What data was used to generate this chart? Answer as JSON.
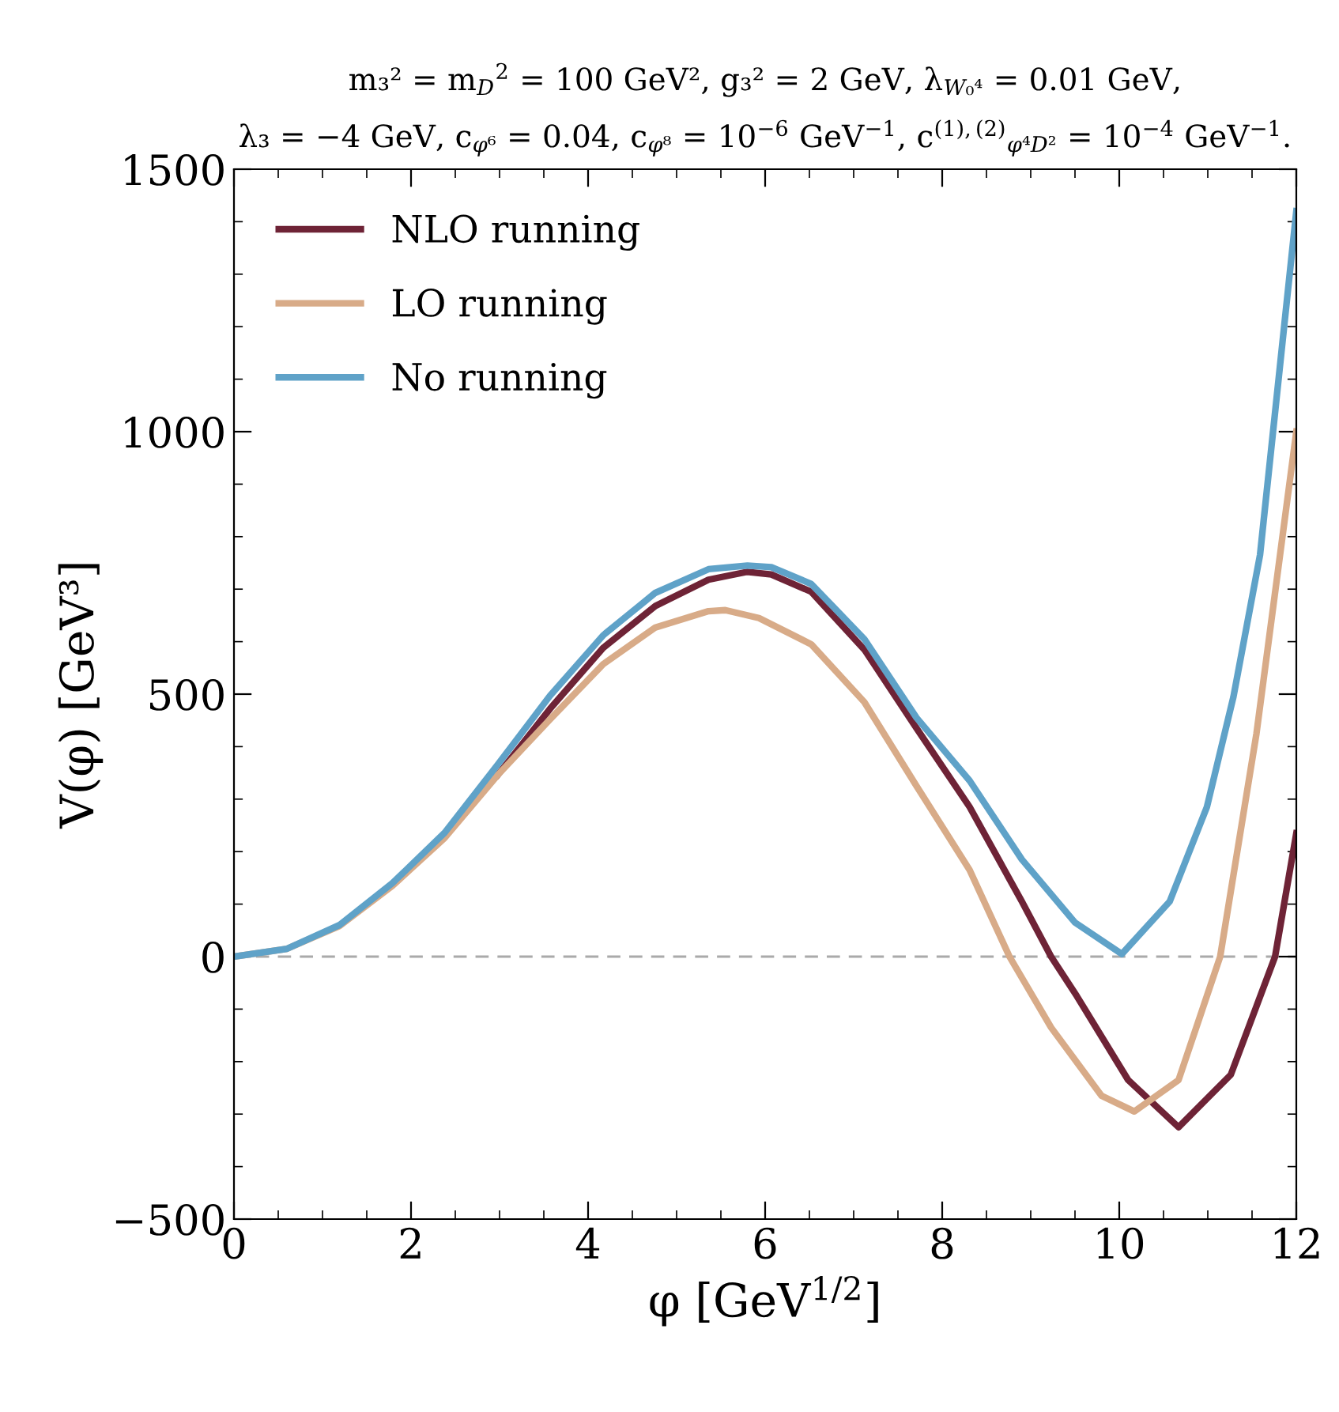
{
  "chart_data": {
    "type": "line",
    "title": "m₃² = m$_{D}$$^{2}$ = 100 GeV², g₃² = 2 GeV, λ$_{W₀⁴}$ = 0.01 GeV,\nλ₃ = −4 GeV, c$_{φ⁶}$ = 0.04, c$_{φ⁸}$ = 10$^{−6}$ GeV$^{−1}$, c$^{(1),(2)}$$_{φ⁴D²}$ = 10$^{−4}$ GeV$^{−1}$.",
    "xlabel": "φ [GeV$^{1/2}$]",
    "ylabel": "V(φ) [GeV³]",
    "series": [
      {
        "name": "NLO running",
        "color": "#6e2336",
        "x": [
          2.98,
          3.57,
          4.17,
          4.76,
          5.36,
          5.8,
          6.07,
          6.52,
          7.12,
          7.71,
          8.31,
          8.9,
          9.23,
          9.52,
          10.1,
          10.67,
          11.26,
          11.76,
          12
        ],
        "values": [
          346,
          472,
          588,
          668,
          718,
          733,
          728,
          695,
          585,
          435,
          285,
          105,
          0,
          -75,
          -235,
          -325,
          -225,
          0,
          235
        ]
      },
      {
        "name": "LO running",
        "color": "#d8ab88",
        "x": [
          0,
          0.6,
          1.19,
          1.79,
          2.38,
          2.98,
          3.57,
          4.17,
          4.76,
          5.36,
          5.55,
          5.93,
          6.52,
          7.12,
          7.71,
          8.31,
          8.76,
          9.23,
          9.8,
          10.17,
          10.67,
          11.14,
          11.55,
          12
        ],
        "values": [
          0,
          15,
          58,
          135,
          226,
          346,
          452,
          557,
          627,
          658,
          660,
          645,
          595,
          485,
          325,
          165,
          0,
          -135,
          -265,
          -295,
          -235,
          0,
          425,
          1000
        ]
      },
      {
        "name": "No running",
        "color": "#5fa2c8",
        "x": [
          0,
          0.6,
          1.19,
          1.79,
          2.38,
          2.98,
          3.57,
          4.17,
          4.76,
          5.36,
          5.8,
          6.07,
          6.52,
          7.12,
          7.71,
          8.31,
          8.9,
          9.5,
          10.03,
          10.57,
          10.99,
          11.29,
          11.59,
          12
        ],
        "values": [
          0,
          15,
          60,
          140,
          236,
          366,
          497,
          612,
          693,
          738,
          745,
          742,
          710,
          605,
          455,
          335,
          185,
          65,
          5,
          105,
          285,
          495,
          765,
          1420
        ]
      }
    ],
    "xlim": [
      0,
      12
    ],
    "xticks": [
      0,
      2,
      4,
      6,
      8,
      10,
      12
    ],
    "ylim": [
      -500,
      1500
    ],
    "yticks": [
      {
        "value": -500,
        "label": "−500"
      },
      0,
      500,
      1000,
      1500
    ],
    "ref_lines": [
      {
        "axis": "y",
        "value": 0,
        "color": "#aaaaaa",
        "line_style": "dashed"
      }
    ],
    "legend": "top left",
    "grid": false
  }
}
